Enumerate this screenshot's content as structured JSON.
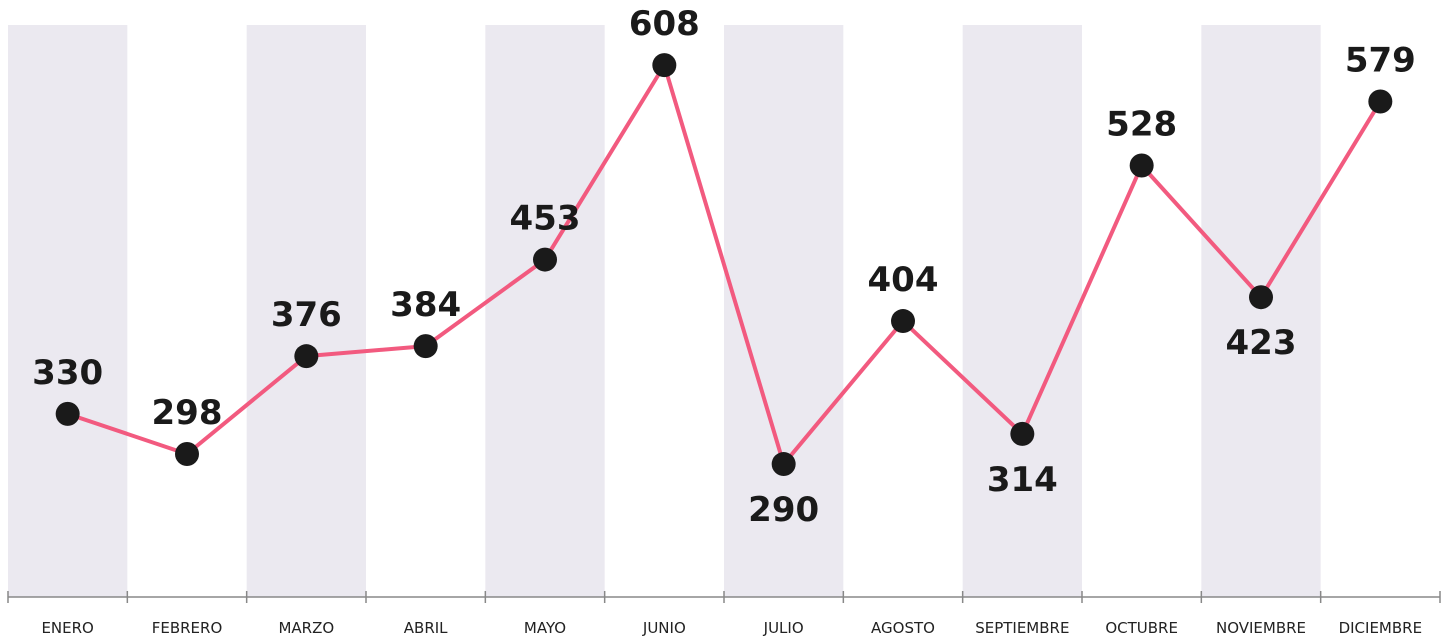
{
  "chart_data": {
    "type": "line",
    "categories": [
      "ENERO",
      "FEBRERO",
      "MARZO",
      "ABRIL",
      "MAYO",
      "JUNIO",
      "JULIO",
      "AGOSTO",
      "SEPTIEMBRE",
      "OCTUBRE",
      "NOVIEMBRE",
      "DICIEMBRE"
    ],
    "series": [
      {
        "color": "#f25a7f",
        "values": [
          330,
          298,
          376,
          384,
          453,
          608,
          290,
          404,
          314,
          528,
          423,
          579
        ]
      }
    ],
    "ylim": [
      184,
      640
    ],
    "band_color": "#ebe9f0",
    "marker_color": "#1a1a1a"
  }
}
